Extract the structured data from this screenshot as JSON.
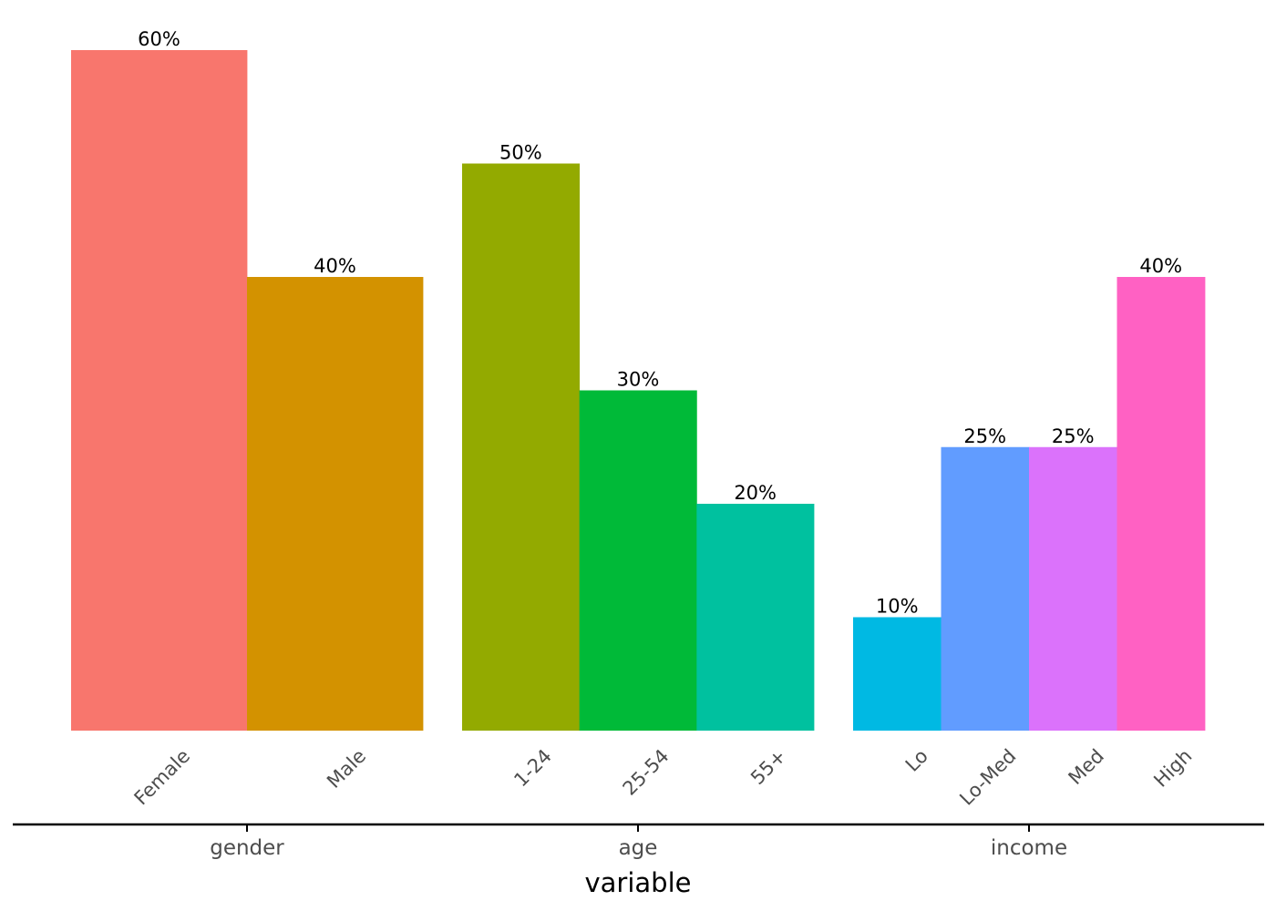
{
  "chart_data": {
    "type": "bar",
    "xlabel": "variable",
    "ylabel": "",
    "ylim": [
      0,
      0.6
    ],
    "grid": false,
    "legend": "none",
    "groups": [
      {
        "name": "gender",
        "bars": [
          {
            "category": "Female",
            "value": 0.6,
            "label": "60%",
            "color": "#F8766D"
          },
          {
            "category": "Male",
            "value": 0.4,
            "label": "40%",
            "color": "#D39200"
          }
        ]
      },
      {
        "name": "age",
        "bars": [
          {
            "category": "1-24",
            "value": 0.5,
            "label": "50%",
            "color": "#93AA00"
          },
          {
            "category": "25-54",
            "value": 0.3,
            "label": "30%",
            "color": "#00BA38"
          },
          {
            "category": "55+",
            "value": 0.2,
            "label": "20%",
            "color": "#00C19F"
          }
        ]
      },
      {
        "name": "income",
        "bars": [
          {
            "category": "Lo",
            "value": 0.1,
            "label": "10%",
            "color": "#00B9E3"
          },
          {
            "category": "Lo-Med",
            "value": 0.25,
            "label": "25%",
            "color": "#619CFF"
          },
          {
            "category": "Med",
            "value": 0.25,
            "label": "25%",
            "color": "#DB72FB"
          },
          {
            "category": "High",
            "value": 0.4,
            "label": "40%",
            "color": "#FF61C3"
          }
        ]
      }
    ]
  }
}
